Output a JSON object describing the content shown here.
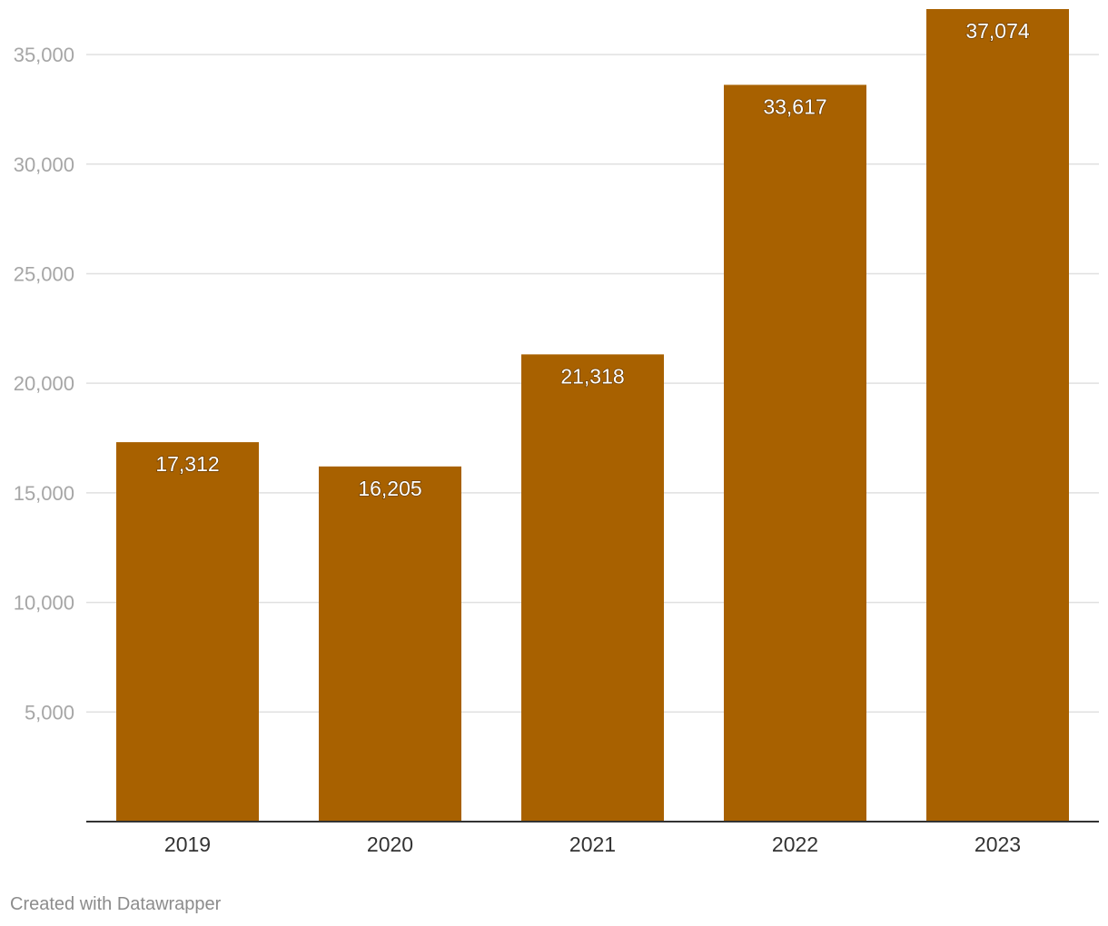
{
  "chart_data": {
    "type": "bar",
    "categories": [
      "2019",
      "2020",
      "2021",
      "2022",
      "2023"
    ],
    "values": [
      17312,
      16205,
      21318,
      33617,
      37074
    ],
    "value_labels": [
      "17,312",
      "16,205",
      "21,318",
      "33,617",
      "37,074"
    ],
    "title": "",
    "xlabel": "",
    "ylabel": "",
    "ylim": [
      0,
      37074
    ],
    "yticks": [
      5000,
      10000,
      15000,
      20000,
      25000,
      30000,
      35000
    ],
    "ytick_labels": [
      "5,000",
      "10,000",
      "15,000",
      "20,000",
      "25,000",
      "30,000",
      "35,000"
    ],
    "grid": true,
    "legend": "none",
    "bar_color": "#a86100",
    "grid_color": "#e0e0e0",
    "axis_color": "#333333"
  },
  "footer": {
    "credit": "Created with Datawrapper"
  }
}
